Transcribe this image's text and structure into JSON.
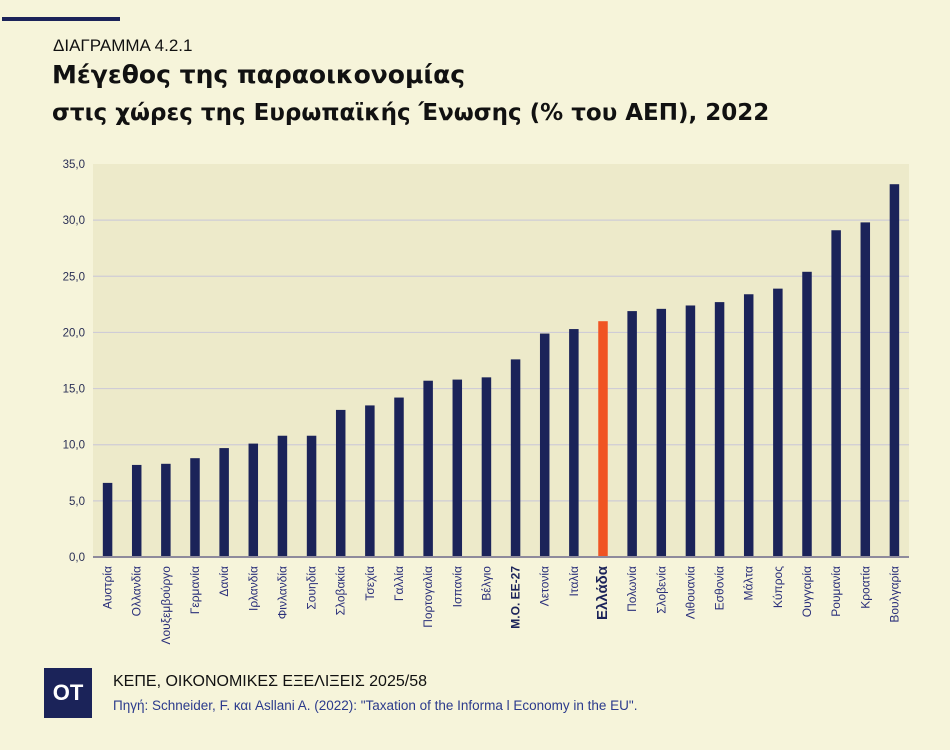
{
  "header": {
    "kicker": "ΔΙΑΓΡΑΜΜΑ 4.2.1",
    "title_line1": "Μέγεθος της παραοικονομίας",
    "title_line2": "στις χώρες της Ευρωπαϊκής Ένωσης (% του ΑΕΠ), 2022"
  },
  "footer": {
    "logo": "OT",
    "publication": "ΚΕΠΕ, ΟΙΚΟΝΟΜΙΚΕΣ ΕΞΕΛΙΞΕΙΣ 2025/58",
    "source": "Πηγή:  Schneider, F. και Asllani A. (2022): \"Taxation of the Informa l Economy in the EU\"."
  },
  "colors": {
    "bar": "#1B2359",
    "highlight_bar": "#F05423",
    "plot_background": "#EDEACA",
    "page_background": "#F6F4DA",
    "gridline": "#CFCCD6"
  },
  "chart_data": {
    "type": "bar",
    "title": "Μέγεθος της παραοικονομίας στις χώρες της Ευρωπαϊκής Ένωσης (% του ΑΕΠ), 2022",
    "xlabel": "",
    "ylabel": "",
    "ylim": [
      0,
      35
    ],
    "yticks": [
      0,
      5,
      10,
      15,
      20,
      25,
      30,
      35
    ],
    "ytick_labels": [
      "0,0",
      "5,0",
      "10,0",
      "15,0",
      "20,0",
      "25,0",
      "30,0",
      "35,0"
    ],
    "grid": true,
    "legend": "none",
    "categories": [
      "Αυστρία",
      "Ολλανδία",
      "Λουξεμβούργο",
      "Γερμανία",
      "Δανία",
      "Ιρλανδία",
      "Φινλανδία",
      "Σουηδία",
      "Σλοβακία",
      "Τσεχία",
      "Γαλλία",
      "Πορτογαλία",
      "Ισπανία",
      "Βέλγιο",
      "Μ.Ο. ΕΕ-27",
      "Λετονία",
      "Ιταλία",
      "Ελλάδα",
      "Πολωνία",
      "Σλοβενία",
      "Λιθουανία",
      "Εσθονία",
      "Μάλτα",
      "Κύπρος",
      "Ουγγαρία",
      "Ρουμανία",
      "Κροατία",
      "Βουλγαρία"
    ],
    "values": [
      6.6,
      8.2,
      8.3,
      8.8,
      9.7,
      10.1,
      10.8,
      10.8,
      13.1,
      13.5,
      14.2,
      15.7,
      15.8,
      16.0,
      17.6,
      19.9,
      20.3,
      21.0,
      21.9,
      22.1,
      22.4,
      22.7,
      23.4,
      23.9,
      25.4,
      29.1,
      29.8,
      33.2
    ],
    "highlight": "Ελλάδα",
    "bold_categories": [
      "Μ.Ο. ΕΕ-27",
      "Ελλάδα"
    ]
  }
}
